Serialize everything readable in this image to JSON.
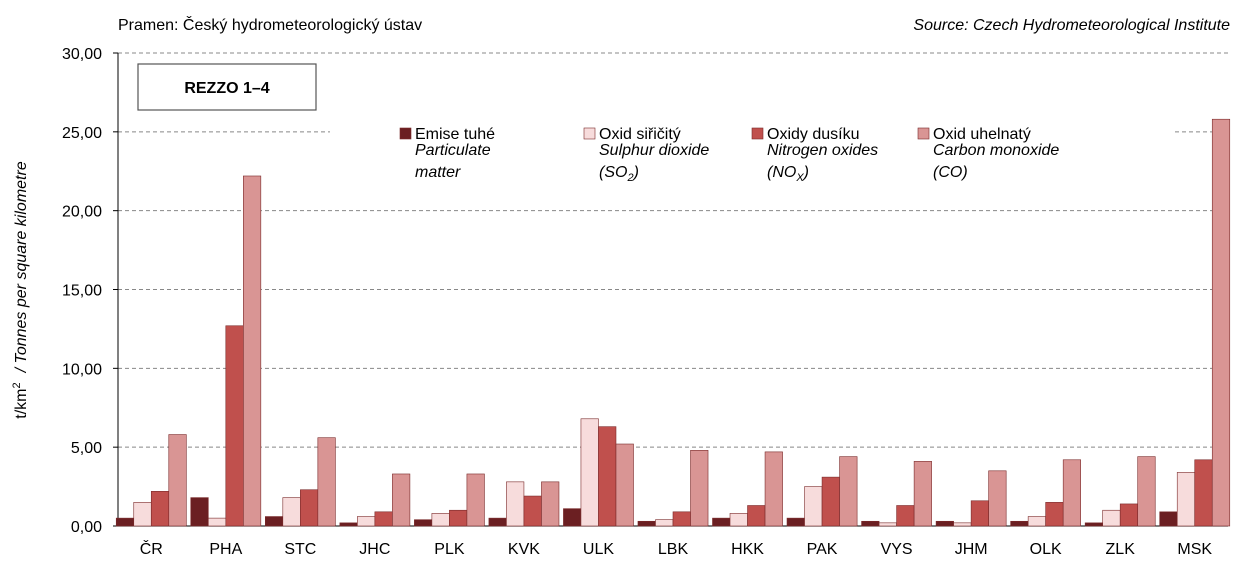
{
  "chart_data": {
    "type": "bar",
    "source_cz": "Pramen: Český hydrometeorologický ústav",
    "source_en": "Source: Czech Hydrometeorological Institute",
    "box_label": "REZZO 1–4",
    "ylabel": "t/km",
    "ylabel_sup": "2",
    "ylabel_en": "/  Tonnes per square kilometre",
    "categories": [
      "ČR",
      "PHA",
      "STC",
      "JHC",
      "PLK",
      "KVK",
      "ULK",
      "LBK",
      "HKK",
      "PAK",
      "VYS",
      "JHM",
      "OLK",
      "ZLK",
      "MSK"
    ],
    "series": [
      {
        "name": "Emise tuhé",
        "en_lines": [
          "Particulate",
          "matter"
        ],
        "color": "#6b1f22",
        "values": [
          0.5,
          1.8,
          0.6,
          0.2,
          0.4,
          0.5,
          1.1,
          0.3,
          0.5,
          0.5,
          0.3,
          0.3,
          0.3,
          0.2,
          0.9
        ]
      },
      {
        "name": "Oxid siřičitý",
        "en_lines": [
          "Sulphur dioxide"
        ],
        "formula": "(SO",
        "formula_sub": "2",
        "formula_end": ")",
        "color": "#f7dcdc",
        "values": [
          1.5,
          0.5,
          1.8,
          0.6,
          0.8,
          2.8,
          6.8,
          0.4,
          0.8,
          2.5,
          0.2,
          0.2,
          0.6,
          1.0,
          3.4
        ]
      },
      {
        "name": "Oxidy dusíku",
        "en_lines": [
          "Nitrogen oxides"
        ],
        "formula": "(NO",
        "formula_sub": "X",
        "formula_end": ")",
        "color": "#c0504d",
        "values": [
          2.2,
          12.7,
          2.3,
          0.9,
          1.0,
          1.9,
          6.3,
          0.9,
          1.3,
          3.1,
          1.3,
          1.6,
          1.5,
          1.4,
          4.2
        ]
      },
      {
        "name": "Oxid uhelnatý",
        "en_lines": [
          "Carbon monoxide"
        ],
        "formula": "(CO)",
        "color": "#d99594",
        "values": [
          5.8,
          22.2,
          5.6,
          3.3,
          3.3,
          2.8,
          5.2,
          4.8,
          4.7,
          4.4,
          4.1,
          3.5,
          4.2,
          4.4,
          25.8
        ]
      }
    ],
    "ylim": [
      0,
      30
    ],
    "yticks": [
      {
        "value": 0,
        "label": "0,00"
      },
      {
        "value": 5,
        "label": "5,00"
      },
      {
        "value": 10,
        "label": "10,00"
      },
      {
        "value": 15,
        "label": "15,00"
      },
      {
        "value": 20,
        "label": "20,00"
      },
      {
        "value": 25,
        "label": "25,00"
      },
      {
        "value": 30,
        "label": "30,00"
      }
    ],
    "grid": true
  }
}
